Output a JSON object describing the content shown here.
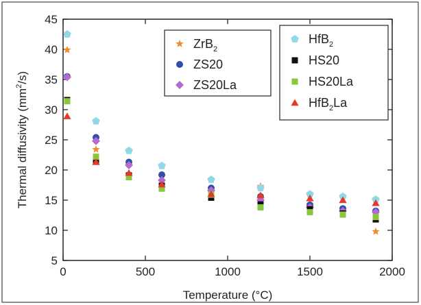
{
  "chart_data": {
    "type": "scatter",
    "xlabel": "Temperature (°C)",
    "ylabel_parts": {
      "pre": "Thermal diffusivity (mm",
      "sup": "2",
      "post": "/s)"
    },
    "xlim": [
      0,
      2000
    ],
    "ylim": [
      5,
      45
    ],
    "xticks": [
      0,
      500,
      1000,
      1500,
      2000
    ],
    "yticks": [
      5,
      10,
      15,
      20,
      25,
      30,
      35,
      40,
      45
    ],
    "grid": false,
    "legend_placement": "top-right (two boxes)",
    "series": [
      {
        "name": "ZrB2",
        "label_main": "ZrB",
        "label_sub": "2",
        "marker": "star",
        "color": "#f28c28",
        "x": [
          25,
          200,
          400,
          600,
          900,
          1200,
          1500,
          1700,
          1900
        ],
        "y": [
          39.9,
          23.4,
          19.2,
          19.0,
          16.3,
          17.3,
          14.3,
          13.0,
          9.8
        ]
      },
      {
        "name": "ZS20",
        "label_main": "ZS20",
        "label_sub": "",
        "marker": "circle",
        "color": "#2f4fa8",
        "x": [
          25,
          200,
          400,
          600,
          900,
          1200,
          1500,
          1700,
          1900
        ],
        "y": [
          35.5,
          25.4,
          21.3,
          19.2,
          17.0,
          15.6,
          14.2,
          13.6,
          13.2
        ]
      },
      {
        "name": "ZS20La",
        "label_main": "ZS20La",
        "label_sub": "",
        "marker": "diamond",
        "color": "#b36bd1",
        "x": [
          25,
          200,
          400,
          600,
          900,
          1200,
          1500,
          1700,
          1900
        ],
        "y": [
          35.4,
          24.8,
          20.8,
          18.3,
          16.6,
          15.0,
          13.8,
          13.2,
          13.0
        ]
      },
      {
        "name": "HfB2",
        "label_main": "HfB",
        "label_sub": "2",
        "marker": "pentagon",
        "color": "#8fd8e8",
        "x": [
          25,
          200,
          400,
          600,
          900,
          1200,
          1500,
          1700,
          1900
        ],
        "y": [
          42.5,
          28.1,
          23.2,
          20.7,
          18.4,
          17.0,
          16.0,
          15.6,
          15.1
        ]
      },
      {
        "name": "HS20",
        "label_main": "HS20",
        "label_sub": "",
        "marker": "square",
        "color": "#111111",
        "x": [
          25,
          200,
          400,
          600,
          900,
          1200,
          1500,
          1700,
          1900
        ],
        "y": [
          31.6,
          21.5,
          19.1,
          17.4,
          15.4,
          14.3,
          13.5,
          12.8,
          11.8
        ]
      },
      {
        "name": "HS20La",
        "label_main": "HS20La",
        "label_sub": "",
        "marker": "square",
        "color": "#8cc63f",
        "x": [
          25,
          200,
          400,
          600,
          900,
          1200,
          1500,
          1700,
          1900
        ],
        "y": [
          31.4,
          22.2,
          18.8,
          16.9,
          15.9,
          13.8,
          13.0,
          12.6,
          12.2
        ]
      },
      {
        "name": "HfB2La",
        "label_main": "HfB",
        "label_sub": "2",
        "label_post": "La",
        "marker": "triangle",
        "color": "#e53a2a",
        "x": [
          25,
          200,
          400,
          600,
          900,
          1200,
          1500,
          1700,
          1900
        ],
        "y": [
          28.9,
          21.3,
          19.5,
          17.6,
          16.0,
          15.8,
          15.3,
          15.0,
          14.5
        ]
      }
    ],
    "legend_groups": [
      [
        0,
        1,
        2
      ],
      [
        3,
        4,
        5,
        6
      ]
    ]
  }
}
